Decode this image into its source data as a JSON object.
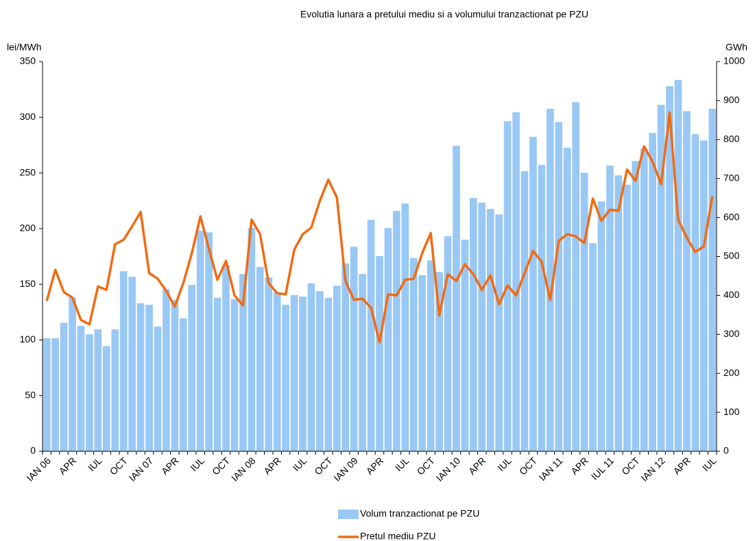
{
  "chart_data": {
    "type": "bar-line",
    "title": "Evolutia lunara a pretului mediu si a volumului tranzactionat pe PZU",
    "y_label": "lei/MWh",
    "y2_label": "GWh",
    "categories": [
      "IAN 06",
      null,
      null,
      "APR",
      null,
      null,
      "IUL",
      null,
      null,
      "OCT",
      null,
      null,
      "IAN 07",
      null,
      null,
      "APR",
      null,
      null,
      "IUL",
      null,
      null,
      "OCT",
      null,
      null,
      "IAN 08",
      null,
      null,
      "APR",
      null,
      null,
      "IUL",
      null,
      null,
      "OCT",
      null,
      null,
      "IAN 09",
      null,
      null,
      "APR",
      null,
      null,
      "IUL",
      null,
      null,
      "OCT",
      null,
      null,
      "IAN 10",
      null,
      null,
      "APR",
      null,
      null,
      "IUL",
      null,
      null,
      "OCT",
      null,
      null,
      "IAN 11",
      null,
      null,
      "APR",
      null,
      null,
      "IUL 11",
      null,
      null,
      "OCT",
      null,
      null,
      "IAN 12",
      null,
      null,
      "APR",
      null,
      null,
      "IUL"
    ],
    "series": [
      {
        "name": "Volum tranzactionat pe PZU",
        "kind": "bar",
        "axis": "y2",
        "color": "#99c8f5",
        "values": [
          290,
          290,
          330,
          395,
          322,
          300,
          313,
          270,
          313,
          462,
          448,
          380,
          376,
          320,
          416,
          388,
          341,
          427,
          566,
          562,
          394,
          478,
          390,
          455,
          573,
          473,
          446,
          408,
          376,
          401,
          397,
          431,
          411,
          394,
          425,
          482,
          525,
          455,
          594,
          501,
          573,
          617,
          636,
          496,
          452,
          490,
          460,
          552,
          784,
          543,
          650,
          638,
          622,
          608,
          847,
          870,
          719,
          807,
          735,
          879,
          845,
          779,
          896,
          715,
          534,
          641,
          733,
          708,
          684,
          745,
          777,
          817,
          889,
          937,
          953,
          873,
          814,
          798,
          879
        ]
      },
      {
        "name": "Pretul mediu PZU",
        "kind": "line",
        "axis": "y",
        "color": "#f26b10",
        "values": [
          135,
          163,
          143,
          138,
          118,
          114,
          148,
          145,
          186,
          190,
          202,
          215,
          160,
          155,
          144,
          130,
          151,
          178,
          211,
          182,
          154,
          171,
          140,
          131,
          208,
          195,
          151,
          142,
          141,
          181,
          195,
          201,
          225,
          244,
          228,
          153,
          136,
          137,
          129,
          98,
          141,
          140,
          154,
          155,
          178,
          196,
          122,
          159,
          153,
          168,
          159,
          145,
          158,
          132,
          149,
          140,
          160,
          180,
          170,
          136,
          189,
          195,
          193,
          187,
          227,
          207,
          217,
          216,
          253,
          243,
          274,
          260,
          240,
          304,
          208,
          192,
          179,
          184,
          229
        ]
      }
    ],
    "ylim": [
      0,
      350
    ],
    "yticks": [
      0,
      50,
      100,
      150,
      200,
      250,
      300,
      350
    ],
    "y2lim": [
      0,
      1000
    ],
    "y2ticks": [
      0,
      100,
      200,
      300,
      400,
      500,
      600,
      700,
      800,
      900,
      1000
    ],
    "legend": "bottom"
  }
}
